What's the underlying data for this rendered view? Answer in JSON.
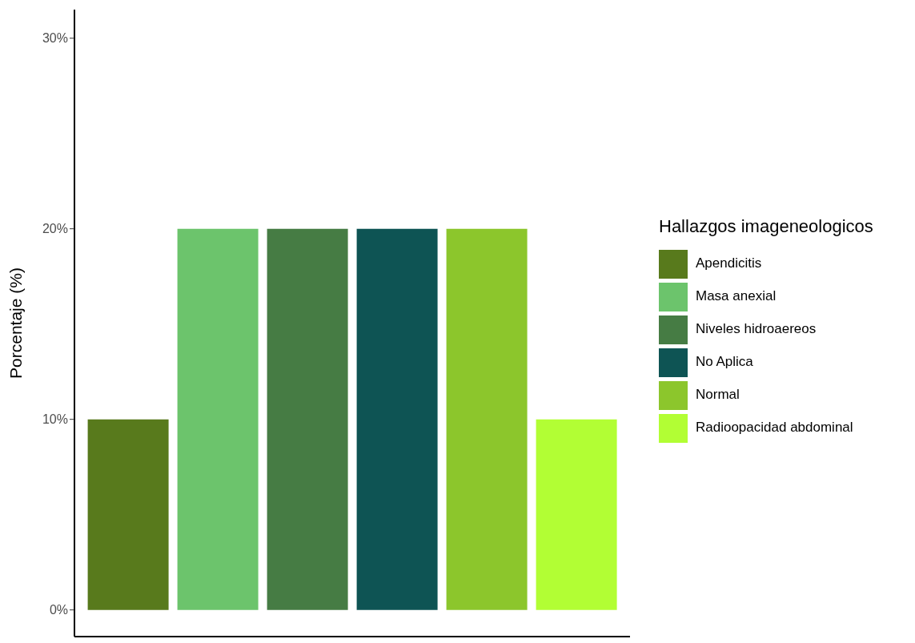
{
  "chart_data": {
    "type": "bar",
    "categories": [
      null,
      null,
      null,
      null,
      null,
      null
    ],
    "series": [
      {
        "name": "Apendicitis",
        "color": "#587a1c",
        "values": [
          10,
          null,
          null,
          null,
          null,
          null
        ]
      },
      {
        "name": "Masa anexial",
        "color": "#6cc46c",
        "values": [
          null,
          20,
          null,
          null,
          null,
          null
        ]
      },
      {
        "name": "Niveles hidroaereos",
        "color": "#467c44",
        "values": [
          null,
          null,
          20,
          null,
          null,
          null
        ]
      },
      {
        "name": "No Aplica",
        "color": "#0e5454",
        "values": [
          null,
          null,
          null,
          20,
          null,
          null
        ]
      },
      {
        "name": "Normal",
        "color": "#8cc62c",
        "values": [
          null,
          null,
          null,
          null,
          20,
          null
        ]
      },
      {
        "name": "Radioopacidad abdominal",
        "color": "#b2fe34",
        "values": [
          null,
          null,
          null,
          null,
          null,
          10
        ]
      }
    ],
    "stacked": true,
    "ylabel": "Porcentaje (%)",
    "legend_title": "Hallazgos imageneologicos",
    "ylim": [
      -1.4,
      31.5
    ],
    "yticks": [
      {
        "value": 0,
        "label": "0%"
      },
      {
        "value": 10,
        "label": "10%"
      },
      {
        "value": 20,
        "label": "20%"
      },
      {
        "value": 30,
        "label": "30%"
      }
    ],
    "tick_labels": "y",
    "grid": false,
    "legend": "right"
  }
}
